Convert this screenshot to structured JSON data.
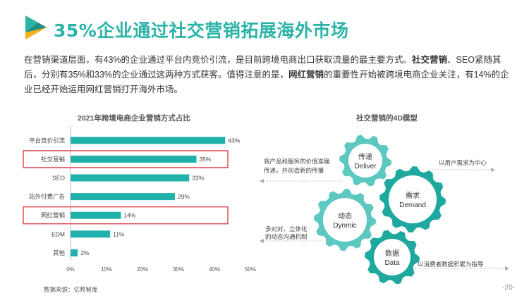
{
  "slide": {
    "title": "35%企业通过社交营销拓展海外市场",
    "paragraph": [
      {
        "text": "在营销渠道层面，有43%的企业通过平台内竞价引流，是目前跨境电商出口获取流量的最主要方式。",
        "bold": false
      },
      {
        "text": "社交营销",
        "bold": true
      },
      {
        "text": "、SEO紧随其后，分别有35%和33%的企业通过这两种方式获客。值得注意的是，",
        "bold": false
      },
      {
        "text": "网红营销",
        "bold": true
      },
      {
        "text": "的重要性开始被跨境电商企业关注，有14%的企业已经开始运用网红营销打开海外市场。",
        "bold": false
      }
    ],
    "source": "数据来源：亿邦智库",
    "page_number": "-20-"
  },
  "colors": {
    "accent": "#2bb3a8",
    "bar": "#20b2aa",
    "highlight_box": "#d9363e",
    "gear_light": "#5cc8c0",
    "gear_dark": "#1fa99e"
  },
  "chart_data": {
    "type": "bar",
    "orientation": "horizontal",
    "title": "2021年跨境电商企业营销方式占比",
    "categories": [
      "平台竞价引流",
      "社交营销",
      "SEO",
      "站外付费广告",
      "网红营销",
      "EDM",
      "其他"
    ],
    "values": [
      43,
      35,
      33,
      29,
      14,
      11,
      2
    ],
    "value_labels": [
      "43%",
      "35%",
      "33%",
      "29%",
      "14%",
      "11%",
      "2%"
    ],
    "xlim": [
      0,
      50
    ],
    "xticks": [
      "0%",
      "10%",
      "20%",
      "30%",
      "40%",
      "50%"
    ],
    "highlighted": [
      "社交营销",
      "网红营销"
    ],
    "grid": false
  },
  "diagram": {
    "title": "社交营销的4D模型",
    "gears": [
      {
        "id": "deliver",
        "cn": "传递",
        "en": "Deliver",
        "tone": "light"
      },
      {
        "id": "demand",
        "cn": "需求",
        "en": "Demand",
        "tone": "dark"
      },
      {
        "id": "dynmic",
        "cn": "动态",
        "en": "Dynmic",
        "tone": "light"
      },
      {
        "id": "data",
        "cn": "数据",
        "en": "Data",
        "tone": "dark"
      }
    ],
    "annotations": {
      "deliver_line1": "将产品和服务的价值准确",
      "deliver_line2": "传递，并创造新的传播",
      "demand": "以用户需求为中心",
      "dynmic_line1": "多对对、立体化",
      "dynmic_line2": "的动态沟通机制",
      "data": "以消费者数据积累为指导"
    }
  }
}
